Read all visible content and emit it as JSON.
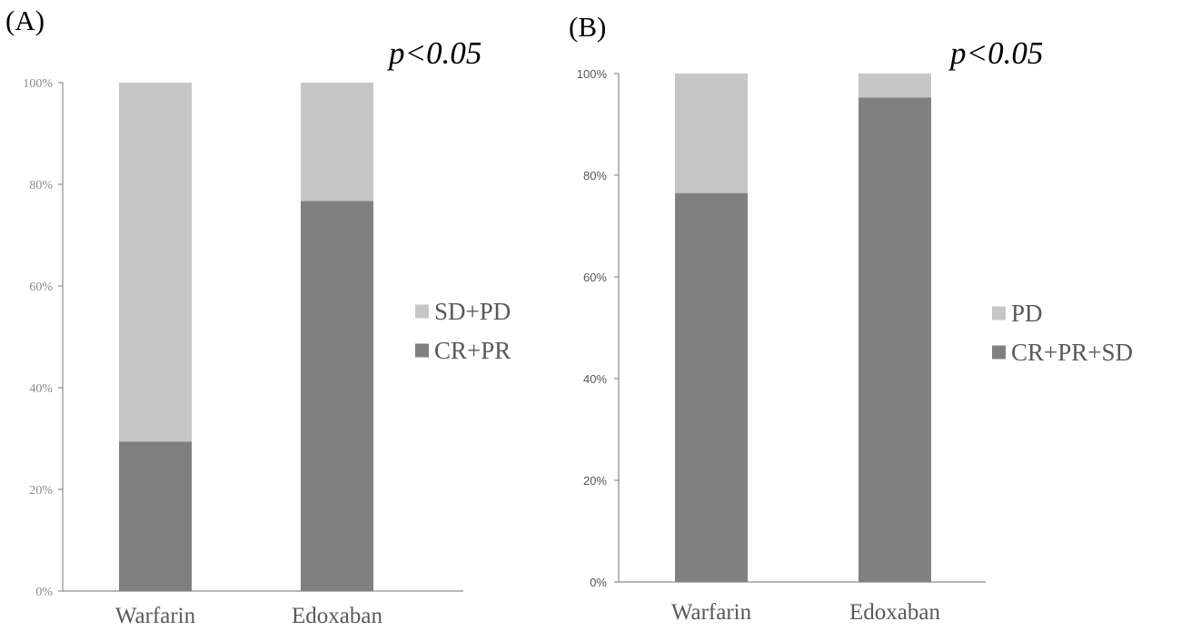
{
  "chart_data": [
    {
      "type": "bar",
      "stacked": true,
      "panel_label": "(A)",
      "annotation": "p<0.05",
      "categories": [
        "Warfarin",
        "Edoxaban"
      ],
      "ylim": [
        0,
        100
      ],
      "yticks": [
        "0%",
        "20%",
        "40%",
        "60%",
        "80%",
        "100%"
      ],
      "series": [
        {
          "name": "CR+PR",
          "values": [
            29.4,
            76.7
          ],
          "color": "#808080"
        },
        {
          "name": "SD+PD",
          "values": [
            70.6,
            23.3
          ],
          "color": "#c6c6c6"
        }
      ],
      "legend_position": "right",
      "grid": false
    },
    {
      "type": "bar",
      "stacked": true,
      "panel_label": "(B)",
      "annotation": "p<0.05",
      "categories": [
        "Warfarin",
        "Edoxaban"
      ],
      "ylim": [
        0,
        100
      ],
      "yticks": [
        "0%",
        "20%",
        "40%",
        "60%",
        "80%",
        "100%"
      ],
      "series": [
        {
          "name": "CR+PR+SD",
          "values": [
            76.5,
            95.3
          ],
          "color": "#808080"
        },
        {
          "name": "PD",
          "values": [
            23.5,
            4.7
          ],
          "color": "#c6c6c6"
        }
      ],
      "legend_position": "right",
      "grid": false
    }
  ]
}
